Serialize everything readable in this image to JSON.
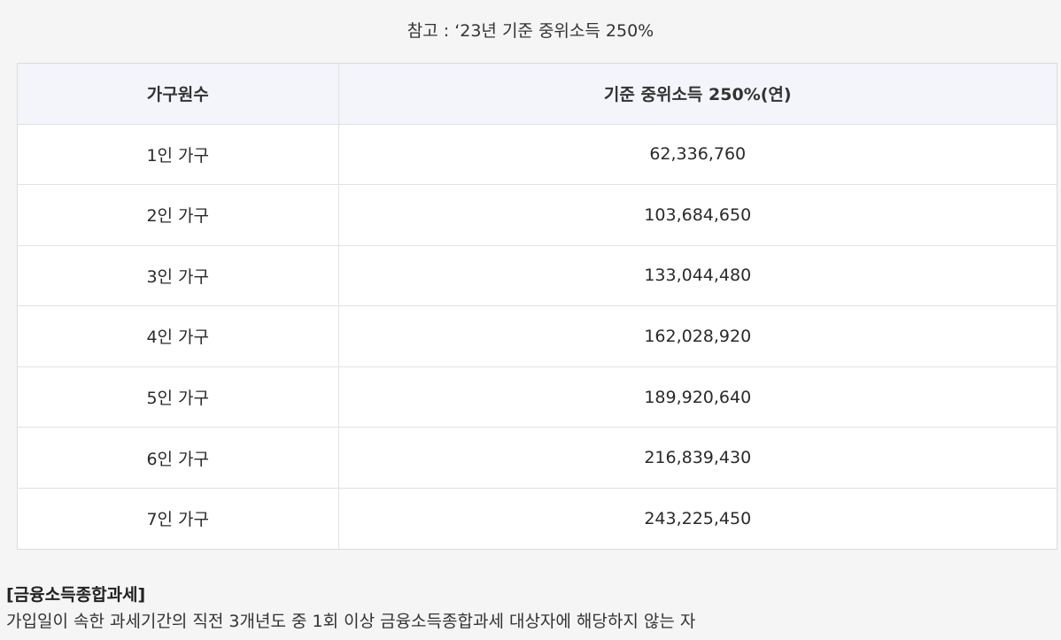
{
  "caption": "참고 : ‘23년 기준 중위소득 250%",
  "table": {
    "headers": [
      "가구원수",
      "기준 중위소득 250%(연)"
    ],
    "rows": [
      [
        "1인 가구",
        "62,336,760"
      ],
      [
        "2인 가구",
        "103,684,650"
      ],
      [
        "3인 가구",
        "133,044,480"
      ],
      [
        "4인 가구",
        "162,028,920"
      ],
      [
        "5인 가구",
        "189,920,640"
      ],
      [
        "6인 가구",
        "216,839,430"
      ],
      [
        "7인 가구",
        "243,225,450"
      ]
    ]
  },
  "section": {
    "title": "[금융소득종합과세]",
    "description": "가입일이 속한 과세기간의 직전 3개년도 중 1회 이상 금융소득종합과세 대상자에 해당하지 않는 자"
  }
}
